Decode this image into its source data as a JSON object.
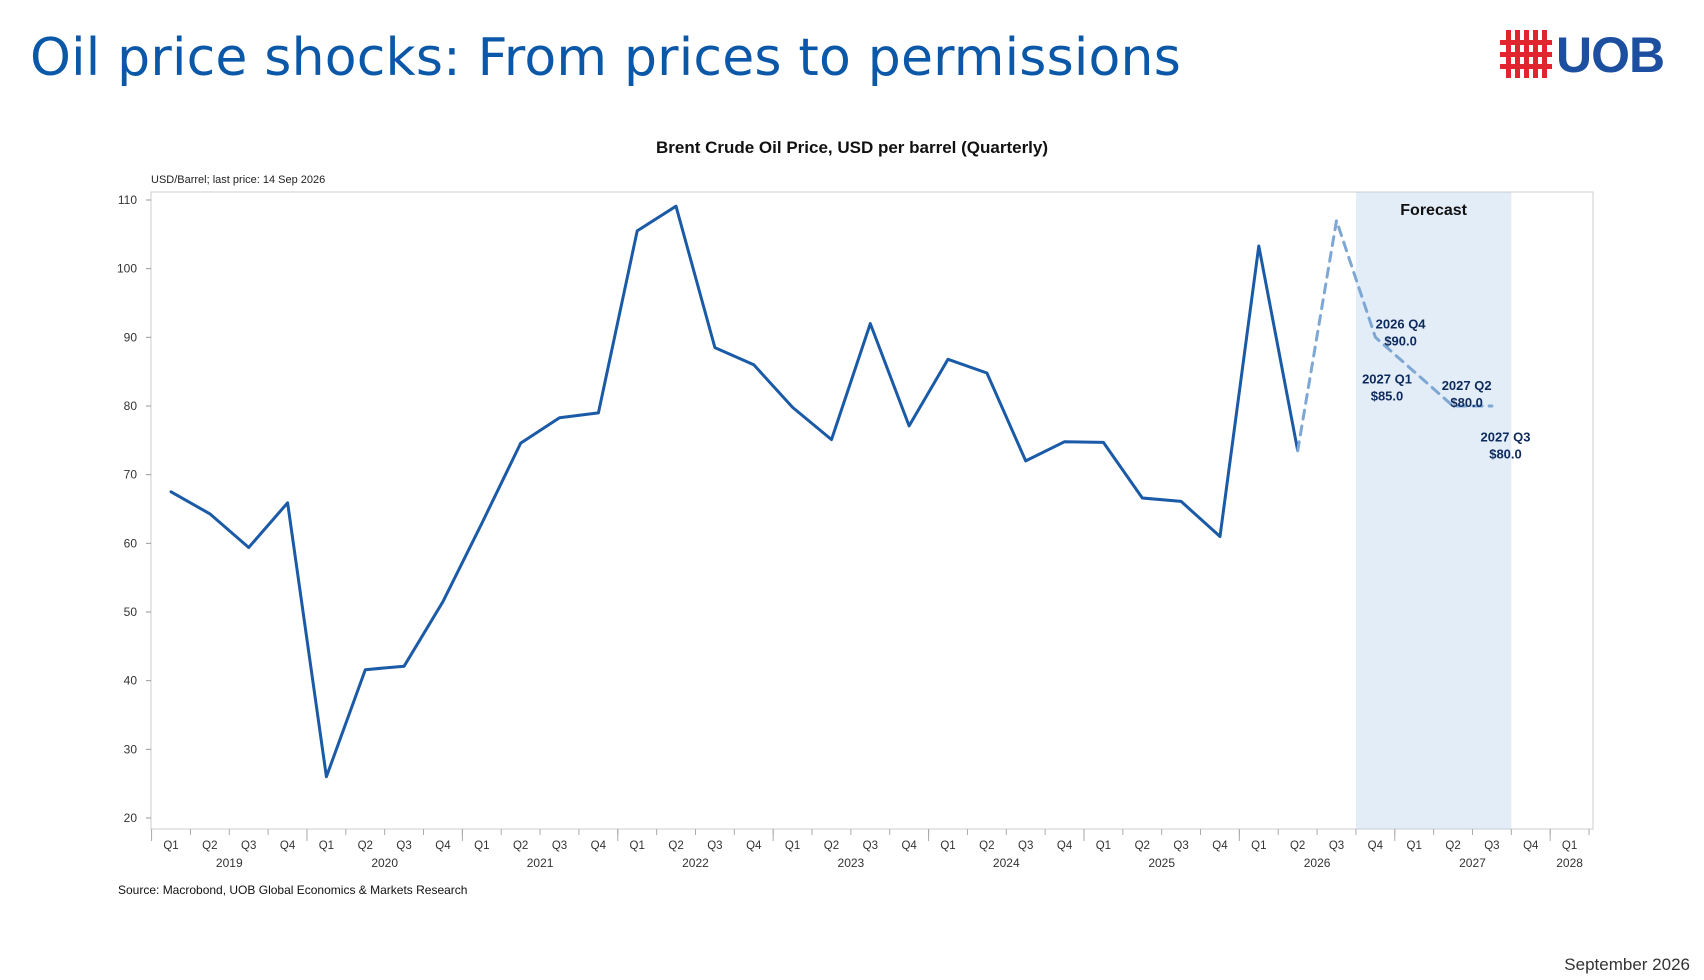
{
  "slide": {
    "title": "Oil price shocks: From prices to permissions",
    "logo_text": "UOB",
    "footer_date": "September 2026",
    "source": "Source: Macrobond, UOB Global Economics & Markets Research"
  },
  "colors": {
    "title": "#0b57a8",
    "actual_line": "#1a5aa6",
    "forecast_line": "#7ea7d4",
    "forecast_band": "#e3edf8",
    "logo_red": "#e1252f",
    "logo_blue": "#1c4fa0"
  },
  "chart_data": {
    "type": "line",
    "title": "Brent Crude Oil Price, USD per barrel (Quarterly)",
    "subtitle": "USD/Barrel; last price: 14 Sep 2026",
    "ylim": [
      20,
      110
    ],
    "yticks": [
      20,
      30,
      40,
      50,
      60,
      70,
      80,
      90,
      100,
      110
    ],
    "x_quarters": [
      "Q1",
      "Q2",
      "Q3",
      "Q4",
      "Q1",
      "Q2",
      "Q3",
      "Q4",
      "Q1",
      "Q2",
      "Q3",
      "Q4",
      "Q1",
      "Q2",
      "Q3",
      "Q4",
      "Q1",
      "Q2",
      "Q3",
      "Q4",
      "Q1",
      "Q2",
      "Q3",
      "Q4",
      "Q1",
      "Q2",
      "Q3",
      "Q4",
      "Q1",
      "Q2",
      "Q3",
      "Q4",
      "Q1",
      "Q2",
      "Q3",
      "Q4",
      "Q1"
    ],
    "x_years": [
      {
        "label": "2019",
        "start": 0,
        "count": 4
      },
      {
        "label": "2020",
        "start": 4,
        "count": 4
      },
      {
        "label": "2021",
        "start": 8,
        "count": 4
      },
      {
        "label": "2022",
        "start": 12,
        "count": 4
      },
      {
        "label": "2023",
        "start": 16,
        "count": 4
      },
      {
        "label": "2024",
        "start": 20,
        "count": 4
      },
      {
        "label": "2025",
        "start": 24,
        "count": 4
      },
      {
        "label": "2026",
        "start": 28,
        "count": 4
      },
      {
        "label": "2027",
        "start": 32,
        "count": 4
      },
      {
        "label": "2028",
        "start": 36,
        "count": 1
      }
    ],
    "series": [
      {
        "style": "solid",
        "points": [
          [
            0,
            67.5
          ],
          [
            1,
            64.3
          ],
          [
            2,
            59.4
          ],
          [
            3,
            65.9
          ],
          [
            4,
            26.0
          ],
          [
            5,
            41.6
          ],
          [
            6,
            42.1
          ],
          [
            7,
            51.5
          ],
          [
            8,
            62.9
          ],
          [
            9,
            74.6
          ],
          [
            10,
            78.3
          ],
          [
            11,
            79.0
          ],
          [
            12,
            105.5
          ],
          [
            13,
            109.1
          ],
          [
            14,
            88.5
          ],
          [
            15,
            86.0
          ],
          [
            16,
            79.8
          ],
          [
            17,
            75.1
          ],
          [
            18,
            92.0
          ],
          [
            19,
            77.1
          ],
          [
            20,
            86.8
          ],
          [
            21,
            84.8
          ],
          [
            22,
            72.0
          ],
          [
            23,
            74.8
          ],
          [
            24,
            74.7
          ],
          [
            25,
            66.6
          ],
          [
            26,
            66.1
          ],
          [
            27,
            61.0
          ],
          [
            28,
            103.3
          ],
          [
            29,
            73.5
          ]
        ]
      },
      {
        "style": "dashed",
        "points": [
          [
            29,
            73.5
          ],
          [
            30,
            107.0
          ],
          [
            31,
            90.0
          ],
          [
            32,
            85.0
          ],
          [
            33,
            80.0
          ],
          [
            34,
            80.0
          ]
        ]
      }
    ],
    "forecast_band": {
      "label": "Forecast",
      "from": 31,
      "to": 34
    },
    "annotations": [
      {
        "line1": "2026 Q4",
        "line2": "$90.0",
        "x": 31.65,
        "y": 91.3
      },
      {
        "line1": "2027 Q1",
        "line2": "$85.0",
        "x": 31.3,
        "y": 83.3
      },
      {
        "line1": "2027 Q2",
        "line2": "$80.0",
        "x": 33.35,
        "y": 82.3
      },
      {
        "line1": "2027 Q3",
        "line2": "$80.0",
        "x": 34.35,
        "y": 74.8
      }
    ]
  }
}
